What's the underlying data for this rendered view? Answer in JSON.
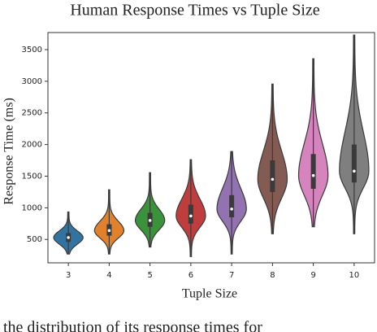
{
  "chart_data": {
    "type": "violin",
    "title": "Human Response Times vs Tuple Size",
    "x_label": "Tuple Size",
    "y_label": "Response Time (ms)",
    "categories": [
      "3",
      "4",
      "5",
      "6",
      "7",
      "8",
      "9",
      "10"
    ],
    "violins": [
      {
        "color": "#3274a1",
        "min": 270,
        "q1": 460,
        "median": 530,
        "q3": 600,
        "max": 935
      },
      {
        "color": "#e1812c",
        "min": 270,
        "q1": 560,
        "median": 640,
        "q3": 740,
        "max": 1285
      },
      {
        "color": "#3a923a",
        "min": 380,
        "q1": 700,
        "median": 800,
        "q3": 920,
        "max": 1555
      },
      {
        "color": "#c03d3e",
        "min": 230,
        "q1": 750,
        "median": 870,
        "q3": 1050,
        "max": 1760
      },
      {
        "color": "#9372b2",
        "min": 270,
        "q1": 850,
        "median": 980,
        "q3": 1200,
        "max": 1890
      },
      {
        "color": "#845b53",
        "min": 590,
        "q1": 1250,
        "median": 1450,
        "q3": 1750,
        "max": 2955
      },
      {
        "color": "#d684bd",
        "min": 700,
        "q1": 1300,
        "median": 1510,
        "q3": 1850,
        "max": 3355
      },
      {
        "color": "#7f7f7f",
        "min": 590,
        "q1": 1400,
        "median": 1580,
        "q3": 2000,
        "max": 3730
      }
    ],
    "ylim": [
      130,
      3770
    ],
    "yticks": [
      500,
      1000,
      1500,
      2000,
      2500,
      3000,
      3500
    ],
    "caption": "the distribution of its response times for"
  }
}
